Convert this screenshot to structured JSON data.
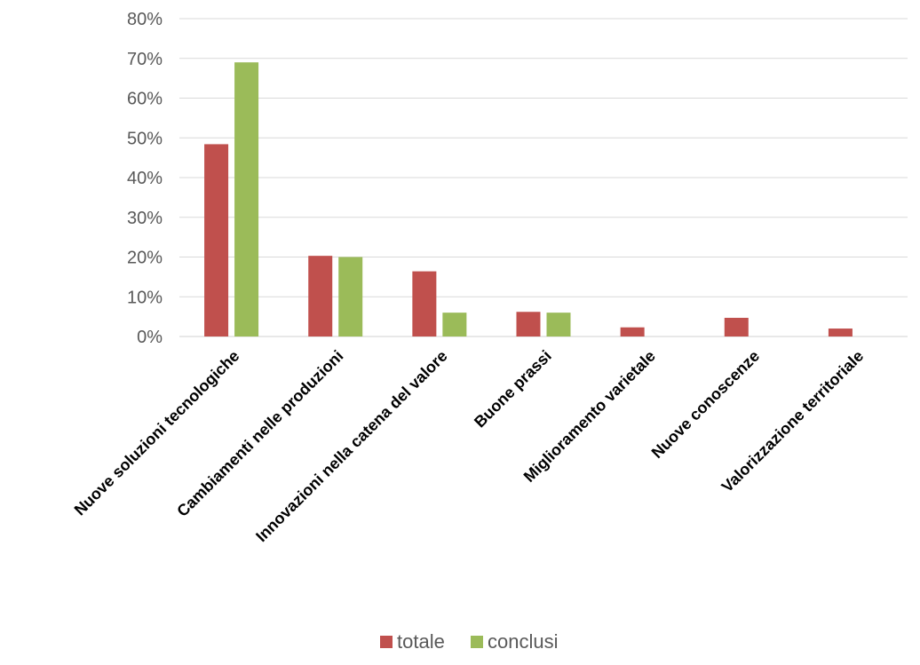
{
  "chart_data": {
    "type": "bar",
    "title": "",
    "xlabel": "",
    "ylabel": "",
    "categories": [
      "Nuove soluzioni tecnologiche",
      "Cambiamenti nelle produzioni",
      "Innovazioni nella catena del valore",
      "Buone prassi",
      "Miglioramento varietale",
      "Nuove conoscenze",
      "Valorizzazione territoriale"
    ],
    "series": [
      {
        "name": "totale",
        "color": "#c0504d",
        "values": [
          48.4,
          20.3,
          16.4,
          6.2,
          2.3,
          4.7,
          2.0
        ]
      },
      {
        "name": "conclusi",
        "color": "#9bbb59",
        "values": [
          69.0,
          20.0,
          6.0,
          6.0,
          0,
          0,
          0
        ]
      }
    ],
    "ylim": [
      0,
      80
    ],
    "yticks": [
      0,
      10,
      20,
      30,
      40,
      50,
      60,
      70,
      80
    ],
    "ytick_labels": [
      "0%",
      "10%",
      "20%",
      "30%",
      "40%",
      "50%",
      "60%",
      "70%",
      "80%"
    ],
    "grid": true,
    "legend_position": "bottom"
  }
}
